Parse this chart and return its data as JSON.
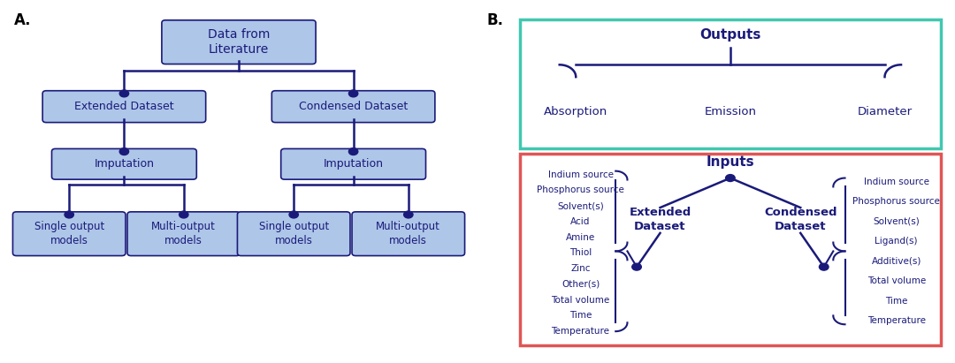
{
  "fig_width": 10.8,
  "fig_height": 4.11,
  "bg_color": "#ffffff",
  "node_color": "#aec6e8",
  "line_color": "#1a1a7a",
  "text_color": "#1a1a7a",
  "panel_A_label": "A.",
  "panel_B_label": "B.",
  "nodes": {
    "data_from_literature": "Data from\nLiterature",
    "extended_dataset": "Extended Dataset",
    "condensed_dataset": "Condensed Dataset",
    "imputation_left": "Imputation",
    "imputation_right": "Imputation",
    "single_output_left": "Single output\nmodels",
    "multi_output_left": "Multi-output\nmodels",
    "single_output_right": "Single output\nmodels",
    "multi_output_right": "Multi-output\nmodels"
  },
  "outputs_label": "Outputs",
  "outputs_children": [
    "Absorption",
    "Emission",
    "Diameter"
  ],
  "inputs_label": "Inputs",
  "extended_dataset_label": "Extended\nDataset",
  "condensed_dataset_label": "Condensed\nDataset",
  "extended_features": [
    "Indium source",
    "Phosphorus source",
    "Solvent(s)",
    "Acid",
    "Amine",
    "Thiol",
    "Zinc",
    "Other(s)",
    "Total volume",
    "Time",
    "Temperature"
  ],
  "condensed_features": [
    "Indium source",
    "Phosphorus source",
    "Solvent(s)",
    "Ligand(s)",
    "Additive(s)",
    "Total volume",
    "Time",
    "Temperature"
  ],
  "outputs_box_color": "#40c8b0",
  "inputs_box_color": "#e05555"
}
